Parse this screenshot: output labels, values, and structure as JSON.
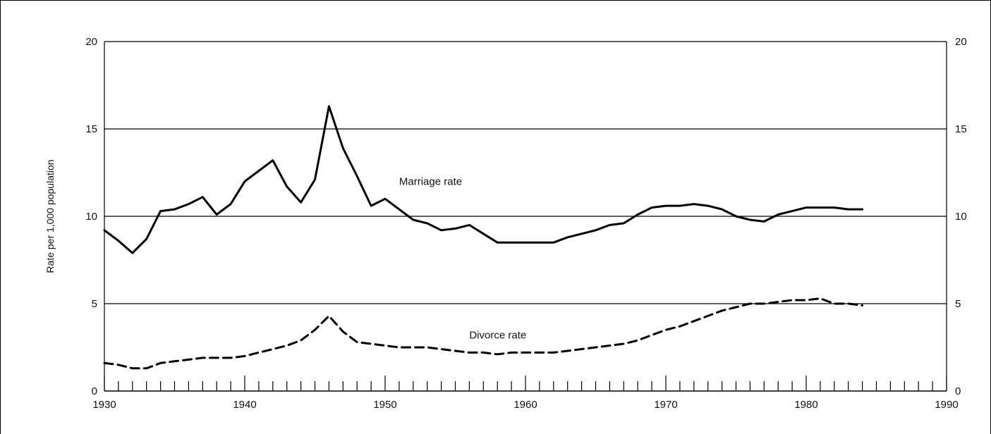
{
  "chart_data": {
    "type": "line",
    "ylabel": "Rate per 1,000 population",
    "xlabel": "",
    "xlim": [
      1930,
      1990
    ],
    "ylim": [
      0,
      20
    ],
    "x_ticks": [
      1930,
      1940,
      1950,
      1960,
      1970,
      1980,
      1990
    ],
    "y_ticks": [
      0,
      5,
      10,
      15,
      20
    ],
    "gridlines_y": [
      5,
      10,
      15
    ],
    "right_axis_labels": true,
    "series": [
      {
        "name": "Marriage rate",
        "style": "solid",
        "x": [
          1930,
          1931,
          1932,
          1933,
          1934,
          1935,
          1936,
          1937,
          1938,
          1939,
          1940,
          1941,
          1942,
          1943,
          1944,
          1945,
          1946,
          1947,
          1948,
          1949,
          1950,
          1951,
          1952,
          1953,
          1954,
          1955,
          1956,
          1957,
          1958,
          1959,
          1960,
          1961,
          1962,
          1963,
          1964,
          1965,
          1966,
          1967,
          1968,
          1969,
          1970,
          1971,
          1972,
          1973,
          1974,
          1975,
          1976,
          1977,
          1978,
          1979,
          1980,
          1981,
          1982,
          1983,
          1984
        ],
        "values": [
          9.2,
          8.6,
          7.9,
          8.7,
          10.3,
          10.4,
          10.7,
          11.1,
          10.1,
          10.7,
          12.0,
          12.6,
          13.2,
          11.7,
          10.8,
          12.1,
          16.3,
          13.9,
          12.3,
          10.6,
          11.0,
          10.4,
          9.8,
          9.6,
          9.2,
          9.3,
          9.5,
          9.0,
          8.5,
          8.5,
          8.5,
          8.5,
          8.5,
          8.8,
          9.0,
          9.2,
          9.5,
          9.6,
          10.1,
          10.5,
          10.6,
          10.6,
          10.7,
          10.6,
          10.4,
          10.0,
          9.8,
          9.7,
          10.1,
          10.3,
          10.5,
          10.5,
          10.5,
          10.4,
          10.4
        ]
      },
      {
        "name": "Divorce rate",
        "style": "dashed",
        "x": [
          1930,
          1931,
          1932,
          1933,
          1934,
          1935,
          1936,
          1937,
          1938,
          1939,
          1940,
          1941,
          1942,
          1943,
          1944,
          1945,
          1946,
          1947,
          1948,
          1949,
          1950,
          1951,
          1952,
          1953,
          1954,
          1955,
          1956,
          1957,
          1958,
          1959,
          1960,
          1961,
          1962,
          1963,
          1964,
          1965,
          1966,
          1967,
          1968,
          1969,
          1970,
          1971,
          1972,
          1973,
          1974,
          1975,
          1976,
          1977,
          1978,
          1979,
          1980,
          1981,
          1982,
          1983,
          1984
        ],
        "values": [
          1.6,
          1.5,
          1.3,
          1.3,
          1.6,
          1.7,
          1.8,
          1.9,
          1.9,
          1.9,
          2.0,
          2.2,
          2.4,
          2.6,
          2.9,
          3.5,
          4.3,
          3.4,
          2.8,
          2.7,
          2.6,
          2.5,
          2.5,
          2.5,
          2.4,
          2.3,
          2.2,
          2.2,
          2.1,
          2.2,
          2.2,
          2.2,
          2.2,
          2.3,
          2.4,
          2.5,
          2.6,
          2.7,
          2.9,
          3.2,
          3.5,
          3.7,
          4.0,
          4.3,
          4.6,
          4.8,
          5.0,
          5.0,
          5.1,
          5.2,
          5.2,
          5.3,
          5.0,
          5.0,
          4.9
        ]
      }
    ],
    "annotations": [
      {
        "text": "Marriage rate",
        "x": 1951,
        "y": 11.8
      },
      {
        "text": "Divorce rate",
        "x": 1956,
        "y": 3.0
      }
    ]
  }
}
